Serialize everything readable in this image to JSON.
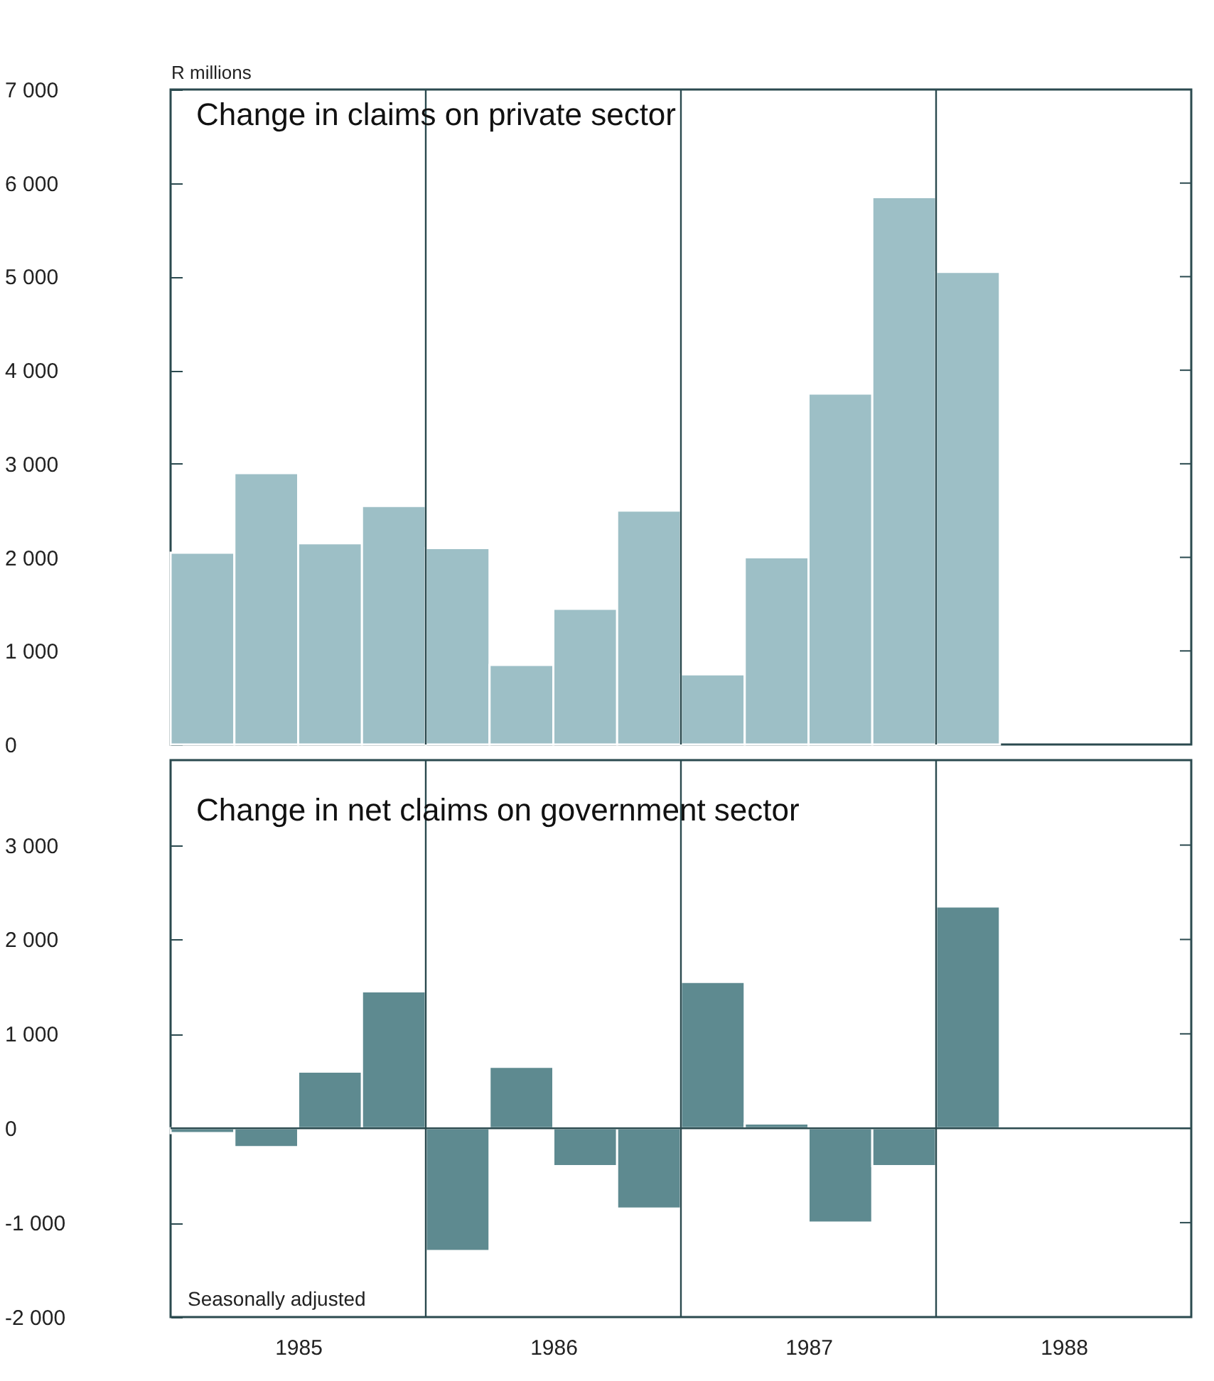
{
  "chart_data": [
    {
      "type": "bar",
      "title": "Change in claims on private sector",
      "ylabel": "R millions",
      "x": [
        1985.125,
        1985.375,
        1985.625,
        1985.875,
        1986.125,
        1986.375,
        1986.625,
        1986.875,
        1987.125,
        1987.375,
        1987.625,
        1987.875,
        1988.125
      ],
      "series": [
        {
          "color": "#9dbfc6",
          "values": [
            2050,
            2900,
            2150,
            2550,
            2100,
            850,
            1450,
            2500,
            750,
            2000,
            3750,
            5850,
            5050
          ]
        }
      ],
      "xlim": [
        1985,
        1989
      ],
      "ylim": [
        0,
        7000
      ],
      "yticks": [
        0,
        {
          "value": 1000,
          "label": "1 000"
        },
        {
          "value": 2000,
          "label": "2 000"
        },
        {
          "value": 3000,
          "label": "3 000"
        },
        {
          "value": 4000,
          "label": "4 000"
        },
        {
          "value": 5000,
          "label": "5 000"
        },
        {
          "value": 6000,
          "label": "6 000"
        },
        {
          "value": 7000,
          "label": "7 000"
        }
      ],
      "ref_lines": [
        {
          "axis": "x",
          "value": 1986
        },
        {
          "axis": "x",
          "value": 1987
        },
        {
          "axis": "x",
          "value": 1988
        }
      ],
      "tick_labels": "y",
      "grid": false
    },
    {
      "type": "bar",
      "title": "Change in net claims on government sector",
      "annotations": [
        "Seasonally adjusted"
      ],
      "x": [
        1985.125,
        1985.375,
        1985.625,
        1985.875,
        1986.125,
        1986.375,
        1986.625,
        1986.875,
        1987.125,
        1987.375,
        1987.625,
        1987.875,
        1988.125
      ],
      "series": [
        {
          "color": "#5e8a90",
          "values": [
            -50,
            -200,
            600,
            1450,
            -1300,
            650,
            -400,
            -850,
            1550,
            50,
            -1000,
            -400,
            2350
          ]
        }
      ],
      "xlim": [
        1985,
        1989
      ],
      "xticks": [
        {
          "value": 1985.5,
          "label": "1985"
        },
        {
          "value": 1986.5,
          "label": "1986"
        },
        {
          "value": 1987.5,
          "label": "1987"
        },
        {
          "value": 1988.5,
          "label": "1988"
        }
      ],
      "ylim": [
        -2000,
        3900
      ],
      "yticks": [
        {
          "value": -2000,
          "label": "-2 000"
        },
        {
          "value": -1000,
          "label": "-1 000"
        },
        0,
        {
          "value": 1000,
          "label": "1 000"
        },
        {
          "value": 2000,
          "label": "2 000"
        },
        {
          "value": 3000,
          "label": "3 000"
        }
      ],
      "ref_lines": [
        {
          "axis": "y",
          "value": 0
        },
        {
          "axis": "x",
          "value": 1986
        },
        {
          "axis": "x",
          "value": 1987
        },
        {
          "axis": "x",
          "value": 1988
        }
      ],
      "grid": false
    }
  ]
}
